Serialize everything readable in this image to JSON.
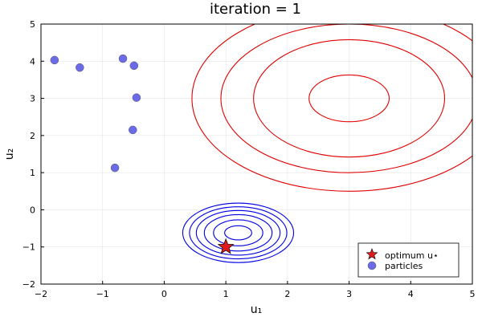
{
  "chart_data": {
    "type": "scatter",
    "title": "iteration = 1",
    "xlabel": "u₁",
    "ylabel": "u₂",
    "xlim": [
      -2,
      5
    ],
    "ylim": [
      -2,
      5
    ],
    "xticks": [
      -2,
      -1,
      0,
      1,
      2,
      3,
      4,
      5
    ],
    "yticks": [
      -2,
      -1,
      0,
      1,
      2,
      3,
      4,
      5
    ],
    "grid": true,
    "legend_position": "bottom-right",
    "series": [
      {
        "name": "optimum u⋆",
        "marker": "star",
        "color": "#e31a1c",
        "points": [
          {
            "x": 1.0,
            "y": -1.0
          }
        ]
      },
      {
        "name": "particles",
        "marker": "circle",
        "color": "#6b6bea",
        "points": [
          {
            "x": -1.78,
            "y": 4.03
          },
          {
            "x": -1.37,
            "y": 3.83
          },
          {
            "x": -0.67,
            "y": 4.07
          },
          {
            "x": -0.49,
            "y": 3.88
          },
          {
            "x": -0.45,
            "y": 3.02
          },
          {
            "x": -0.51,
            "y": 2.15
          },
          {
            "x": -0.8,
            "y": 1.13
          }
        ]
      }
    ],
    "contours": [
      {
        "color": "#e00000",
        "center": {
          "x": 3.0,
          "y": 3.0
        },
        "radii": [
          {
            "rx": 0.65,
            "ry": 0.63
          },
          {
            "rx": 1.55,
            "ry": 1.58
          },
          {
            "rx": 2.08,
            "ry": 2.0
          },
          {
            "rx": 2.55,
            "ry": 2.5
          }
        ]
      },
      {
        "color": "#0000e0",
        "center": {
          "x": 1.2,
          "y": -0.62
        },
        "radii": [
          {
            "rx": 0.22,
            "ry": 0.19
          },
          {
            "rx": 0.4,
            "ry": 0.35
          },
          {
            "rx": 0.55,
            "ry": 0.49
          },
          {
            "rx": 0.68,
            "ry": 0.6
          },
          {
            "rx": 0.79,
            "ry": 0.7
          },
          {
            "rx": 0.9,
            "ry": 0.8
          }
        ]
      }
    ]
  }
}
